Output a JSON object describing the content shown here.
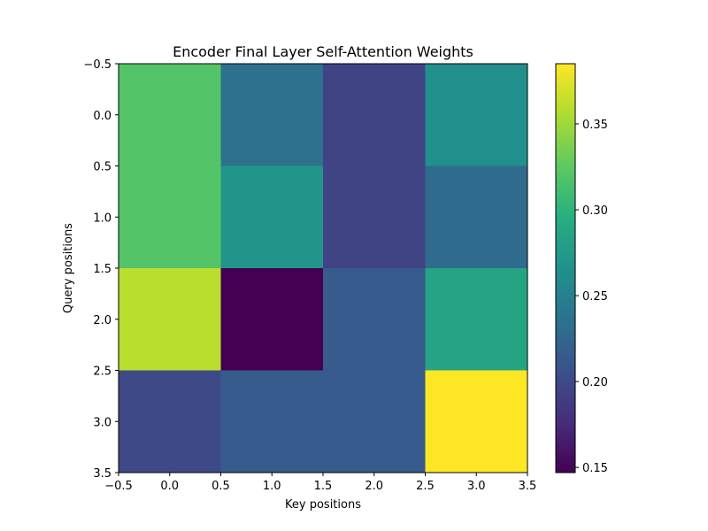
{
  "chart_data": {
    "type": "heatmap",
    "title": "Encoder Final Layer Self-Attention Weights",
    "xlabel": "Key positions",
    "ylabel": "Query positions",
    "x_tick_labels": [
      "−0.5",
      "0.0",
      "0.5",
      "1.0",
      "1.5",
      "2.0",
      "2.5",
      "3.0",
      "3.5"
    ],
    "y_tick_labels": [
      "−0.5",
      "0.0",
      "0.5",
      "1.0",
      "1.5",
      "2.0",
      "2.5",
      "3.0",
      "3.5"
    ],
    "xlim": [
      -0.5,
      3.5
    ],
    "ylim": [
      3.5,
      -0.5
    ],
    "colormap": "viridis",
    "colorbar": {
      "vmin": 0.147,
      "vmax": 0.385,
      "tick_values": [
        0.15,
        0.2,
        0.25,
        0.3,
        0.35
      ],
      "tick_labels": [
        "0.15",
        "0.20",
        "0.25",
        "0.30",
        "0.35"
      ]
    },
    "values": [
      [
        0.32,
        0.235,
        0.195,
        0.265
      ],
      [
        0.32,
        0.27,
        0.195,
        0.23
      ],
      [
        0.36,
        0.147,
        0.215,
        0.285
      ],
      [
        0.2,
        0.215,
        0.215,
        0.385
      ]
    ]
  }
}
